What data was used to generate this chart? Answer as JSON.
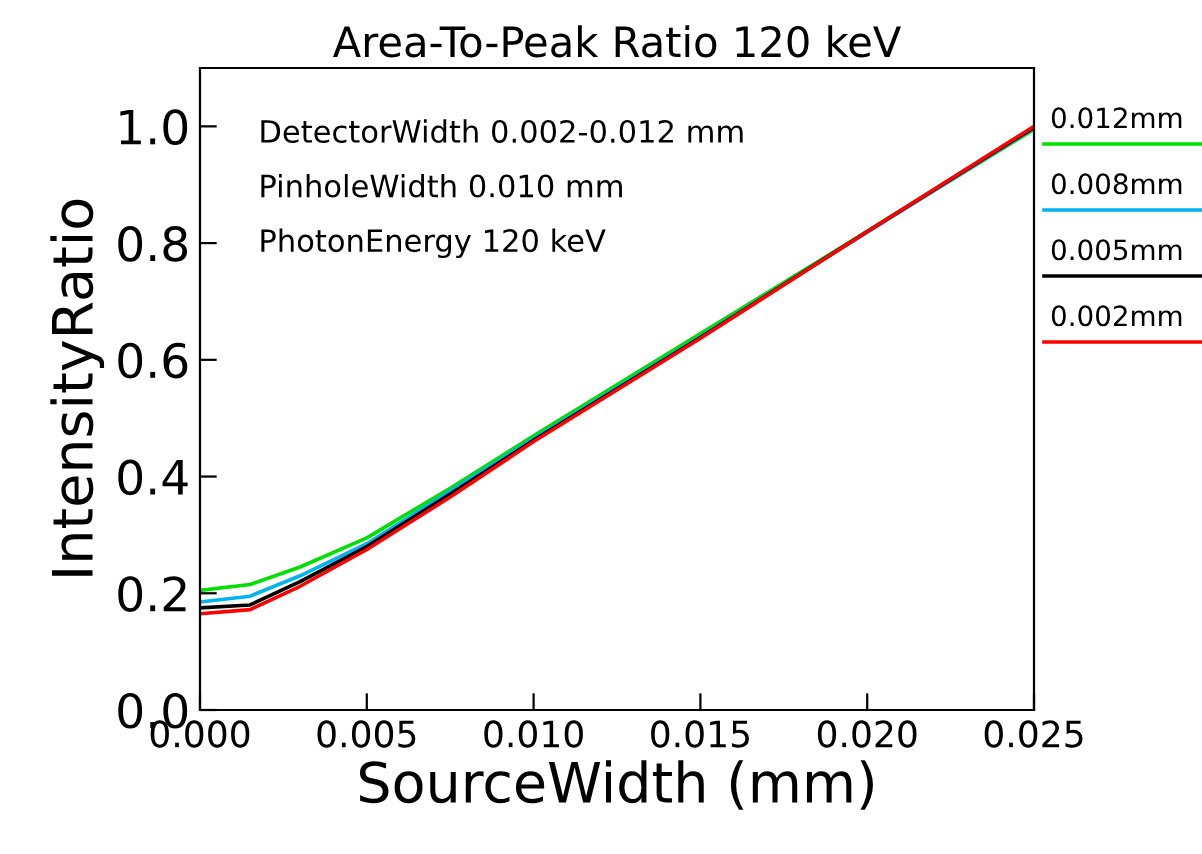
{
  "chart_data": {
    "type": "line",
    "title": "Area-To-Peak Ratio 120 keV",
    "xlabel": "SourceWidth (mm)",
    "ylabel": "IntensityRatio",
    "x": [
      0,
      0.0015,
      0.003,
      0.005,
      0.0075,
      0.01,
      0.015,
      0.02,
      0.025
    ],
    "series": [
      {
        "name": "0.012mm",
        "color": "#00e000",
        "x": [
          0,
          0.0015,
          0.003,
          0.005,
          0.0075,
          0.01,
          0.025
        ],
        "values": [
          0.205,
          0.215,
          0.245,
          0.295,
          0.38,
          0.47,
          0.995
        ]
      },
      {
        "name": "0.008mm",
        "color": "#00b4f0",
        "x": [
          0,
          0.0015,
          0.003,
          0.005,
          0.0075,
          0.01,
          0.015,
          0.025
        ],
        "values": [
          0.185,
          0.195,
          0.23,
          0.285,
          0.375,
          0.465,
          0.64,
          0.997
        ]
      },
      {
        "name": "0.005mm",
        "color": "#000000",
        "values": [
          0.175,
          0.18,
          0.22,
          0.28,
          0.37,
          0.462,
          0.638,
          0.82,
          0.998
        ]
      },
      {
        "name": "0.002mm",
        "color": "#ff0000",
        "values": [
          0.165,
          0.172,
          0.212,
          0.275,
          0.365,
          0.46,
          0.637,
          0.82,
          1.0
        ]
      }
    ],
    "annotations": [
      "DetectorWidth 0.002-0.012 mm",
      "PinholeWidth 0.010 mm",
      "PhotonEnergy 120 keV"
    ],
    "xlim": [
      0,
      0.025
    ],
    "ylim": [
      0,
      1.1
    ],
    "xticks": [
      {
        "value": 0,
        "label": "0.000"
      },
      {
        "value": 0.005,
        "label": "0.005"
      },
      {
        "value": 0.01,
        "label": "0.010"
      },
      {
        "value": 0.015,
        "label": "0.015"
      },
      {
        "value": 0.02,
        "label": "0.020"
      },
      {
        "value": 0.025,
        "label": "0.025"
      }
    ],
    "yticks": [
      {
        "value": 0,
        "label": "0.0"
      },
      {
        "value": 0.2,
        "label": "0.2"
      },
      {
        "value": 0.4,
        "label": "0.4"
      },
      {
        "value": 0.6,
        "label": "0.6"
      },
      {
        "value": 0.8,
        "label": "0.8"
      },
      {
        "value": 1.0,
        "label": "1.0"
      }
    ],
    "grid": false,
    "legend": "right",
    "line_style": "solid"
  }
}
